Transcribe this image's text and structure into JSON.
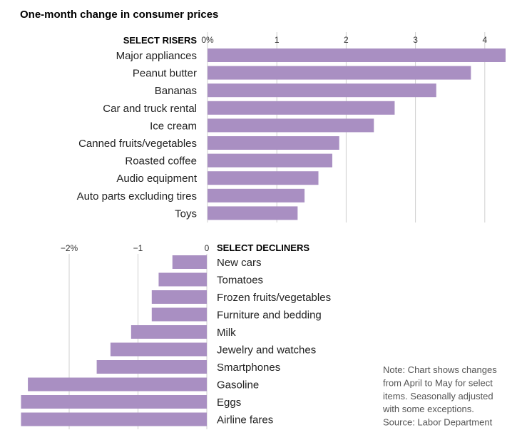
{
  "chart_data": [
    {
      "type": "bar",
      "orientation": "horizontal",
      "title": "One-month change in consumer prices",
      "section_label": "SELECT RISERS",
      "categories": [
        "Major appliances",
        "Peanut butter",
        "Bananas",
        "Car and truck rental",
        "Ice cream",
        "Canned fruits/vegetables",
        "Roasted coffee",
        "Audio equipment",
        "Auto parts excluding tires",
        "Toys"
      ],
      "values": [
        4.3,
        3.8,
        3.3,
        2.7,
        2.4,
        1.9,
        1.8,
        1.6,
        1.4,
        1.3
      ],
      "ticks": [
        0,
        1,
        2,
        3,
        4
      ],
      "tick_labels": [
        "0%",
        "1",
        "2",
        "3",
        "4"
      ],
      "xlim": [
        0,
        4.3
      ],
      "grid": true,
      "color": "#a98fc2"
    },
    {
      "type": "bar",
      "orientation": "horizontal",
      "section_label": "SELECT DECLINERS",
      "categories": [
        "New cars",
        "Tomatoes",
        "Frozen fruits/vegetables",
        "Furniture and bedding",
        "Milk",
        "Jewelry and watches",
        "Smartphones",
        "Gasoline",
        "Eggs",
        "Airline fares"
      ],
      "values": [
        -0.5,
        -0.7,
        -0.8,
        -0.8,
        -1.1,
        -1.4,
        -1.6,
        -2.6,
        -2.7,
        -2.7
      ],
      "ticks": [
        -2,
        -1,
        0
      ],
      "tick_labels": [
        "−2%",
        "−1",
        "0"
      ],
      "xlim": [
        -2.7,
        0
      ],
      "grid": true,
      "color": "#a98fc2"
    }
  ],
  "note": {
    "lines": [
      "Note: Chart shows changes",
      "from April to May for select",
      "items. Seasonally adjusted",
      "with some exceptions.",
      "Source: Labor Department"
    ]
  }
}
